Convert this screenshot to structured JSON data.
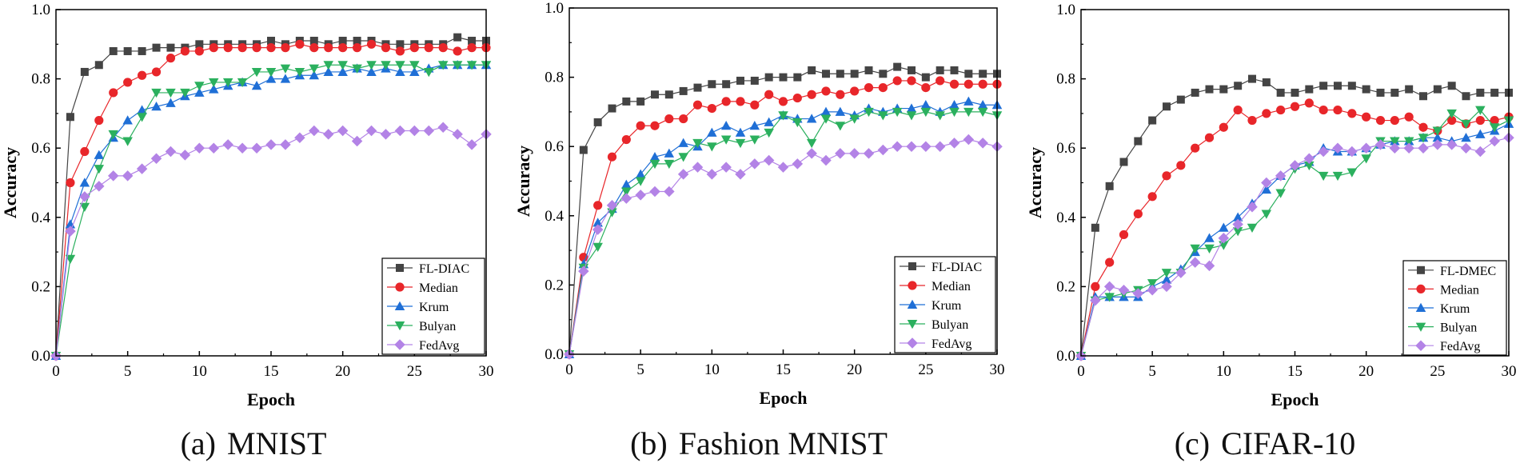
{
  "figure": {
    "marker_styles": {
      "square": "#444444",
      "circle": "#e8262a",
      "triangle-up": "#1f6fd6",
      "triangle-down": "#2bb05e",
      "diamond": "#b383e6"
    }
  },
  "chart_data": [
    {
      "type": "line",
      "panel_label": "(a)",
      "caption": "MNIST",
      "xlabel": "Epoch",
      "ylabel": "Accuracy",
      "xlim": [
        0,
        30
      ],
      "ylim": [
        0,
        1.0
      ],
      "xticks": [
        "0",
        "5",
        "10",
        "15",
        "20",
        "25",
        "30"
      ],
      "yticks": [
        "0.0",
        "0.2",
        "0.4",
        "0.6",
        "0.8",
        "1.0"
      ],
      "legend_position": "bottom-right",
      "x": [
        0,
        1,
        2,
        3,
        4,
        5,
        6,
        7,
        8,
        9,
        10,
        11,
        12,
        13,
        14,
        15,
        16,
        17,
        18,
        19,
        20,
        21,
        22,
        23,
        24,
        25,
        26,
        27,
        28,
        29,
        30
      ],
      "series": [
        {
          "name": "FL-DIAC",
          "color": "#444444",
          "marker": "square",
          "values": [
            0,
            0.69,
            0.82,
            0.84,
            0.88,
            0.88,
            0.88,
            0.89,
            0.89,
            0.89,
            0.9,
            0.9,
            0.9,
            0.9,
            0.9,
            0.91,
            0.9,
            0.91,
            0.91,
            0.9,
            0.91,
            0.91,
            0.91,
            0.9,
            0.9,
            0.9,
            0.9,
            0.9,
            0.92,
            0.91,
            0.91
          ]
        },
        {
          "name": "Median",
          "color": "#e8262a",
          "marker": "circle",
          "values": [
            0,
            0.5,
            0.59,
            0.68,
            0.76,
            0.79,
            0.81,
            0.82,
            0.86,
            0.88,
            0.88,
            0.89,
            0.89,
            0.89,
            0.89,
            0.89,
            0.89,
            0.9,
            0.89,
            0.89,
            0.89,
            0.89,
            0.9,
            0.89,
            0.88,
            0.89,
            0.89,
            0.89,
            0.88,
            0.89,
            0.89
          ]
        },
        {
          "name": "Krum",
          "color": "#1f6fd6",
          "marker": "triangle-up",
          "values": [
            0,
            0.38,
            0.5,
            0.58,
            0.63,
            0.68,
            0.71,
            0.72,
            0.73,
            0.75,
            0.76,
            0.77,
            0.78,
            0.79,
            0.78,
            0.8,
            0.8,
            0.81,
            0.81,
            0.82,
            0.82,
            0.83,
            0.82,
            0.83,
            0.82,
            0.82,
            0.83,
            0.84,
            0.84,
            0.84,
            0.84
          ]
        },
        {
          "name": "Bulyan",
          "color": "#2bb05e",
          "marker": "triangle-down",
          "values": [
            0,
            0.28,
            0.43,
            0.54,
            0.64,
            0.62,
            0.69,
            0.76,
            0.76,
            0.76,
            0.78,
            0.79,
            0.79,
            0.79,
            0.82,
            0.82,
            0.83,
            0.82,
            0.83,
            0.84,
            0.84,
            0.83,
            0.84,
            0.84,
            0.84,
            0.84,
            0.82,
            0.84,
            0.84,
            0.84,
            0.84
          ]
        },
        {
          "name": "FedAvg",
          "color": "#b383e6",
          "marker": "diamond",
          "values": [
            0,
            0.36,
            0.46,
            0.49,
            0.52,
            0.52,
            0.54,
            0.57,
            0.59,
            0.58,
            0.6,
            0.6,
            0.61,
            0.6,
            0.6,
            0.61,
            0.61,
            0.63,
            0.65,
            0.64,
            0.65,
            0.62,
            0.65,
            0.64,
            0.65,
            0.65,
            0.65,
            0.66,
            0.64,
            0.61,
            0.64
          ]
        }
      ]
    },
    {
      "type": "line",
      "panel_label": "(b)",
      "caption": "Fashion MNIST",
      "xlabel": "Epoch",
      "ylabel": "Accuracy",
      "xlim": [
        0,
        30
      ],
      "ylim": [
        0,
        1.0
      ],
      "xticks": [
        "0",
        "5",
        "10",
        "15",
        "20",
        "25",
        "30"
      ],
      "yticks": [
        "0.0",
        "0.2",
        "0.4",
        "0.6",
        "0.8",
        "1.0"
      ],
      "legend_position": "bottom-right",
      "x": [
        0,
        1,
        2,
        3,
        4,
        5,
        6,
        7,
        8,
        9,
        10,
        11,
        12,
        13,
        14,
        15,
        16,
        17,
        18,
        19,
        20,
        21,
        22,
        23,
        24,
        25,
        26,
        27,
        28,
        29,
        30
      ],
      "series": [
        {
          "name": "FL-DIAC",
          "color": "#444444",
          "marker": "square",
          "values": [
            0,
            0.59,
            0.67,
            0.71,
            0.73,
            0.73,
            0.75,
            0.75,
            0.76,
            0.77,
            0.78,
            0.78,
            0.79,
            0.79,
            0.8,
            0.8,
            0.8,
            0.82,
            0.81,
            0.81,
            0.81,
            0.82,
            0.81,
            0.83,
            0.82,
            0.8,
            0.82,
            0.82,
            0.81,
            0.81,
            0.81
          ]
        },
        {
          "name": "Median",
          "color": "#e8262a",
          "marker": "circle",
          "values": [
            0,
            0.28,
            0.43,
            0.57,
            0.62,
            0.66,
            0.66,
            0.68,
            0.68,
            0.72,
            0.71,
            0.73,
            0.73,
            0.72,
            0.75,
            0.73,
            0.74,
            0.75,
            0.76,
            0.75,
            0.76,
            0.77,
            0.77,
            0.79,
            0.79,
            0.77,
            0.79,
            0.78,
            0.78,
            0.78,
            0.78
          ]
        },
        {
          "name": "Krum",
          "color": "#1f6fd6",
          "marker": "triangle-up",
          "values": [
            0,
            0.26,
            0.38,
            0.42,
            0.49,
            0.52,
            0.57,
            0.58,
            0.61,
            0.6,
            0.64,
            0.66,
            0.64,
            0.66,
            0.67,
            0.69,
            0.68,
            0.68,
            0.7,
            0.7,
            0.69,
            0.71,
            0.7,
            0.71,
            0.71,
            0.72,
            0.7,
            0.72,
            0.73,
            0.72,
            0.72
          ]
        },
        {
          "name": "Bulyan",
          "color": "#2bb05e",
          "marker": "triangle-down",
          "values": [
            0,
            0.25,
            0.31,
            0.41,
            0.47,
            0.5,
            0.55,
            0.55,
            0.57,
            0.61,
            0.6,
            0.62,
            0.61,
            0.62,
            0.64,
            0.69,
            0.67,
            0.61,
            0.68,
            0.66,
            0.68,
            0.7,
            0.69,
            0.7,
            0.69,
            0.7,
            0.69,
            0.7,
            0.7,
            0.7,
            0.69
          ]
        },
        {
          "name": "FedAvg",
          "color": "#b383e6",
          "marker": "diamond",
          "values": [
            0,
            0.24,
            0.36,
            0.43,
            0.45,
            0.46,
            0.47,
            0.47,
            0.52,
            0.54,
            0.52,
            0.54,
            0.52,
            0.55,
            0.56,
            0.54,
            0.55,
            0.58,
            0.56,
            0.58,
            0.58,
            0.58,
            0.59,
            0.6,
            0.6,
            0.6,
            0.6,
            0.61,
            0.62,
            0.61,
            0.6
          ]
        }
      ]
    },
    {
      "type": "line",
      "panel_label": "(c)",
      "caption": "CIFAR-10",
      "xlabel": "Epoch",
      "ylabel": "Accuracy",
      "xlim": [
        0,
        30
      ],
      "ylim": [
        0,
        1.0
      ],
      "xticks": [
        "0",
        "5",
        "10",
        "15",
        "20",
        "25",
        "30"
      ],
      "yticks": [
        "0.0",
        "0.2",
        "0.4",
        "0.6",
        "0.8",
        "1.0"
      ],
      "legend_position": "bottom-right",
      "x": [
        0,
        1,
        2,
        3,
        4,
        5,
        6,
        7,
        8,
        9,
        10,
        11,
        12,
        13,
        14,
        15,
        16,
        17,
        18,
        19,
        20,
        21,
        22,
        23,
        24,
        25,
        26,
        27,
        28,
        29,
        30
      ],
      "series": [
        {
          "name": "FL-DMEC",
          "color": "#444444",
          "marker": "square",
          "values": [
            0,
            0.37,
            0.49,
            0.56,
            0.62,
            0.68,
            0.72,
            0.74,
            0.76,
            0.77,
            0.77,
            0.78,
            0.8,
            0.79,
            0.76,
            0.76,
            0.77,
            0.78,
            0.78,
            0.78,
            0.77,
            0.76,
            0.76,
            0.77,
            0.75,
            0.77,
            0.78,
            0.75,
            0.76,
            0.76,
            0.76
          ]
        },
        {
          "name": "Median",
          "color": "#e8262a",
          "marker": "circle",
          "values": [
            0,
            0.2,
            0.27,
            0.35,
            0.41,
            0.46,
            0.52,
            0.55,
            0.6,
            0.63,
            0.66,
            0.71,
            0.68,
            0.7,
            0.71,
            0.72,
            0.73,
            0.71,
            0.71,
            0.7,
            0.69,
            0.68,
            0.68,
            0.69,
            0.66,
            0.65,
            0.68,
            0.67,
            0.68,
            0.68,
            0.69
          ]
        },
        {
          "name": "Krum",
          "color": "#1f6fd6",
          "marker": "triangle-up",
          "values": [
            0,
            0.17,
            0.17,
            0.17,
            0.17,
            0.2,
            0.22,
            0.25,
            0.3,
            0.34,
            0.37,
            0.4,
            0.44,
            0.48,
            0.52,
            0.55,
            0.56,
            0.6,
            0.59,
            0.59,
            0.6,
            0.61,
            0.62,
            0.62,
            0.63,
            0.63,
            0.62,
            0.63,
            0.64,
            0.65,
            0.67
          ]
        },
        {
          "name": "Bulyan",
          "color": "#2bb05e",
          "marker": "triangle-down",
          "values": [
            0,
            0.16,
            0.17,
            0.18,
            0.19,
            0.21,
            0.24,
            0.24,
            0.31,
            0.31,
            0.32,
            0.36,
            0.37,
            0.41,
            0.47,
            0.54,
            0.55,
            0.52,
            0.52,
            0.53,
            0.57,
            0.62,
            0.62,
            0.62,
            0.63,
            0.65,
            0.7,
            0.67,
            0.71,
            0.66,
            0.68
          ]
        },
        {
          "name": "FedAvg",
          "color": "#b383e6",
          "marker": "diamond",
          "values": [
            0,
            0.16,
            0.2,
            0.19,
            0.18,
            0.19,
            0.2,
            0.24,
            0.27,
            0.26,
            0.34,
            0.38,
            0.43,
            0.5,
            0.52,
            0.55,
            0.57,
            0.59,
            0.6,
            0.59,
            0.6,
            0.61,
            0.6,
            0.6,
            0.6,
            0.61,
            0.61,
            0.6,
            0.59,
            0.62,
            0.63
          ]
        }
      ]
    }
  ]
}
